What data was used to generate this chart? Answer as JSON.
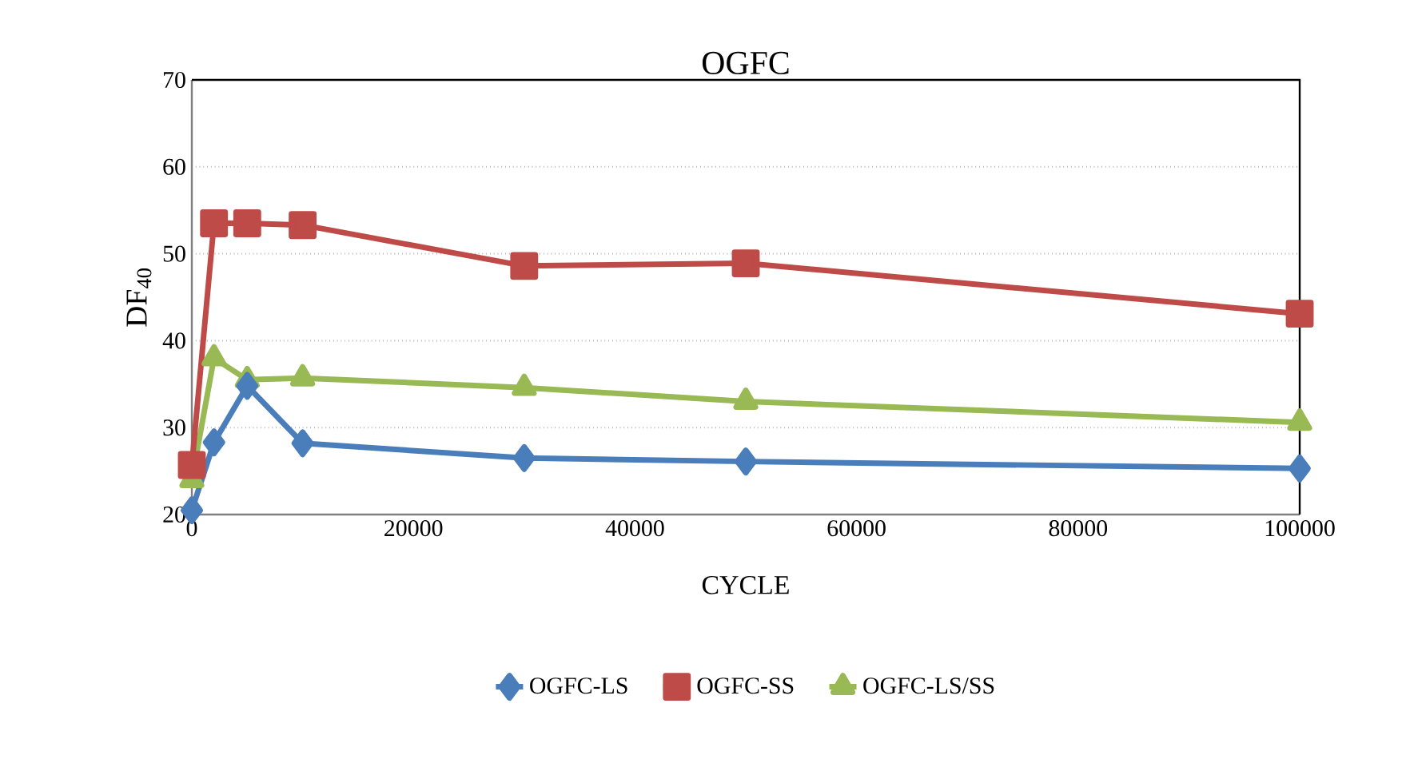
{
  "chart_data": {
    "type": "line",
    "title": "OGFC",
    "xlabel": "CYCLE",
    "ylabel": "DF$_{40}$",
    "x": [
      0,
      2000,
      5000,
      10000,
      30000,
      50000,
      100000
    ],
    "series": [
      {
        "name": "OGFC-LS",
        "color": "#4a7ebb",
        "marker": "diamond",
        "values": [
          20.5,
          28.3,
          34.8,
          28.2,
          26.5,
          26.1,
          25.3
        ]
      },
      {
        "name": "OGFC-SS",
        "color": "#be4b48",
        "marker": "square",
        "values": [
          25.7,
          53.5,
          53.5,
          53.3,
          48.6,
          48.9,
          43.1
        ]
      },
      {
        "name": "OGFC-LS/SS",
        "color": "#98b954",
        "marker": "triangle",
        "values": [
          24.0,
          38.0,
          35.5,
          35.7,
          34.6,
          33.0,
          30.6
        ]
      }
    ],
    "xlim": [
      0,
      100000
    ],
    "xticks": [
      0,
      20000,
      40000,
      60000,
      80000,
      100000
    ],
    "ylim": [
      20,
      70
    ],
    "yticks": [
      20,
      30,
      40,
      50,
      60,
      70
    ],
    "grid": "y",
    "legend": "bottom",
    "line_style": "solid"
  }
}
